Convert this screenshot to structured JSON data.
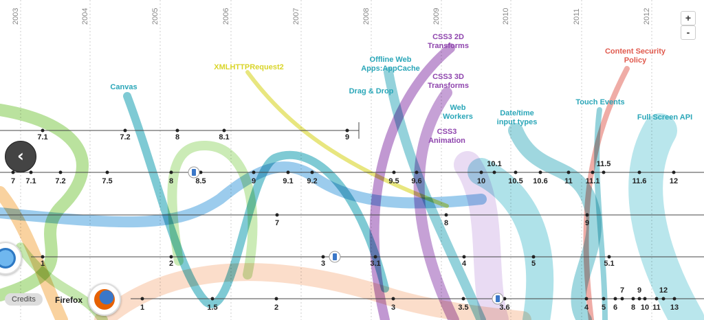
{
  "years": [
    "2003",
    "2004",
    "2005",
    "2006",
    "2007",
    "2008",
    "2009",
    "2010",
    "2011",
    "2012"
  ],
  "controls": {
    "zoom_in": "+",
    "zoom_out": "-",
    "back": "‹",
    "credits": "Credits"
  },
  "browser_label": "Firefox",
  "features": [
    {
      "label": "Canvas",
      "color": "#2aa6b8"
    },
    {
      "label": "XMLHTTPRequest2",
      "color": "#d9d52a"
    },
    {
      "label": "Drag & Drop",
      "color": "#2aa6b8"
    },
    {
      "label": "Offline Web Apps:AppCache",
      "color": "#2aa6b8"
    },
    {
      "label": "CSS3 2D Transforms",
      "color": "#8e44ad"
    },
    {
      "label": "CSS3 3D Transforms",
      "color": "#8e44ad"
    },
    {
      "label": "Web Workers",
      "color": "#2aa6b8"
    },
    {
      "label": "CSS3 Animation",
      "color": "#8e44ad"
    },
    {
      "label": "Date/time input types",
      "color": "#2aa6b8"
    },
    {
      "label": "Touch Events",
      "color": "#2aa6b8"
    },
    {
      "label": "Content Security Policy",
      "color": "#e05a4e"
    },
    {
      "label": "Full Screen API",
      "color": "#2aa6b8"
    }
  ],
  "browser_lines": [
    {
      "name": "opera",
      "versions": [
        "7.1",
        "7.2",
        "8",
        "8.1",
        "9"
      ]
    },
    {
      "name": "chrome-ie-upper",
      "versions": [
        "7",
        "7.1",
        "7.2",
        "7.5",
        "8",
        "8.5",
        "9",
        "9.1",
        "9.2",
        "9.5",
        "9.6",
        "10",
        "10.1",
        "10.5",
        "10.6",
        "11",
        "11.1",
        "11.5",
        "11.6",
        "12"
      ]
    },
    {
      "name": "ie",
      "versions": [
        "7",
        "8",
        "9"
      ]
    },
    {
      "name": "safari",
      "versions": [
        "1",
        "2",
        "3",
        "3.1",
        "4",
        "5",
        "5.1"
      ]
    },
    {
      "name": "firefox",
      "versions": [
        "1",
        "1.5",
        "2",
        "3",
        "3.5",
        "3.6",
        "4",
        "5",
        "6",
        "7",
        "8",
        "9",
        "10",
        "11",
        "12",
        "13"
      ]
    }
  ]
}
